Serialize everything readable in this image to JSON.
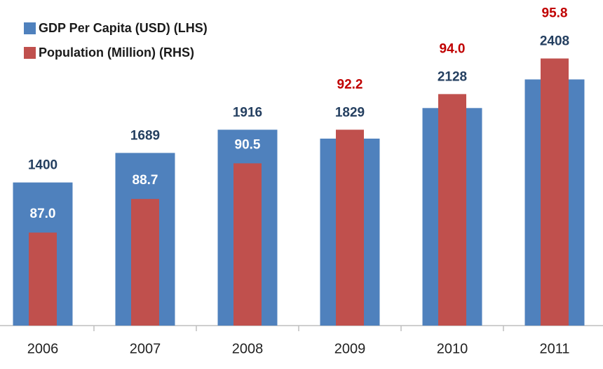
{
  "chart_data": {
    "type": "bar",
    "categories": [
      "2006",
      "2007",
      "2008",
      "2009",
      "2010",
      "2011"
    ],
    "series": [
      {
        "name": "GDP Per Capita (USD) (LHS)",
        "color": "#4f81bd",
        "values": [
          1400,
          1689,
          1916,
          1829,
          2128,
          2408
        ]
      },
      {
        "name": "Population (Million) (RHS)",
        "color": "#c0504d",
        "axis": "y2",
        "values": [
          87.0,
          88.7,
          90.5,
          92.2,
          94.0,
          95.8
        ],
        "value_labels": [
          "87.0",
          "88.7",
          "90.5",
          "92.2",
          "94.0",
          "95.8"
        ]
      }
    ],
    "ylim": [
      0,
      3000
    ],
    "y2lim": [
      82.3,
      97.8
    ],
    "legend": "top-left"
  }
}
